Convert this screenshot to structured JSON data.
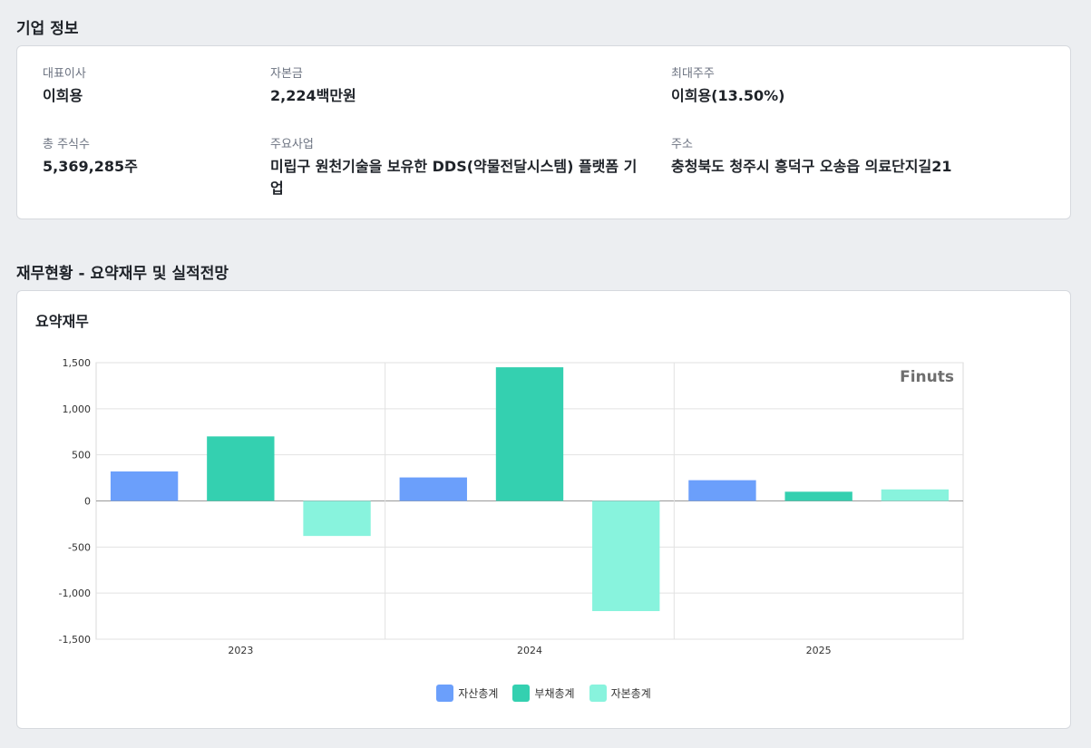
{
  "company_section": {
    "title": "기업 정보",
    "fields": [
      {
        "label": "대표이사",
        "value": "이희용"
      },
      {
        "label": "자본금",
        "value": "2,224백만원"
      },
      {
        "label": "최대주주",
        "value": "이희용(13.50%)"
      },
      {
        "label": "총 주식수",
        "value": "5,369,285주"
      },
      {
        "label": "주요사업",
        "value": "미립구 원천기술을 보유한 DDS(약물전달시스템) 플랫폼 기업"
      },
      {
        "label": "주소",
        "value": "충청북도 청주시 흥덕구 오송읍 의료단지길21"
      }
    ]
  },
  "finance_section": {
    "title": "재무현황 - 요약재무 및 실적전망",
    "card_title": "요약재무",
    "watermark": "Finuts"
  },
  "chart_data": {
    "type": "bar",
    "title": "요약재무",
    "categories": [
      "2023",
      "2024",
      "2025"
    ],
    "series": [
      {
        "name": "자산총계",
        "values": [
          320,
          255,
          225
        ],
        "color": "#6b9ffb"
      },
      {
        "name": "부채총계",
        "values": [
          700,
          1450,
          100
        ],
        "color": "#34d0b0"
      },
      {
        "name": "자본총계",
        "values": [
          -380,
          -1195,
          125
        ],
        "color": "#88f3dd"
      }
    ],
    "ylim": [
      -1500,
      1500
    ],
    "yticks": [
      1500,
      1000,
      500,
      0,
      -500,
      -1000,
      -1500
    ],
    "ytick_labels": [
      "1,500",
      "1,000",
      "500",
      "0",
      "-500",
      "-1,000",
      "-1,500"
    ],
    "grid": true,
    "legend": "bottom-center"
  }
}
